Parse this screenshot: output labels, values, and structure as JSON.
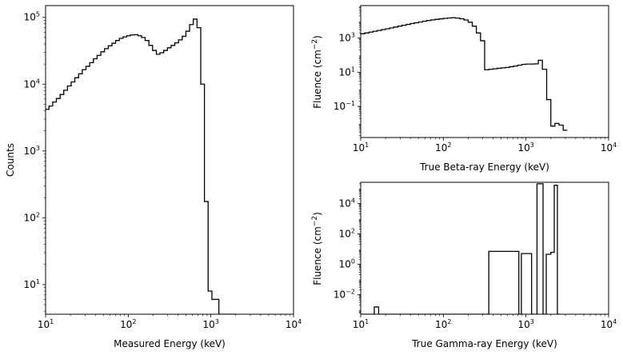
{
  "chart_data": [
    {
      "type": "step",
      "title": "",
      "xlabel": "Measured Energy (keV)",
      "ylabel": "Counts",
      "xscale": "log",
      "yscale": "log",
      "xlim": [
        10,
        10000
      ],
      "ylim": [
        3.6,
        150000
      ],
      "xticks": [
        {
          "value": 10,
          "base": "10",
          "exp": "1"
        },
        {
          "value": 100,
          "base": "10",
          "exp": "2"
        },
        {
          "value": 1000,
          "base": "10",
          "exp": "3"
        },
        {
          "value": 10000,
          "base": "10",
          "exp": "4"
        }
      ],
      "yticks": [
        {
          "value": 10,
          "base": "10",
          "exp": "1"
        },
        {
          "value": 100,
          "base": "10",
          "exp": "2"
        },
        {
          "value": 1000,
          "base": "10",
          "exp": "3"
        },
        {
          "value": 10000,
          "base": "10",
          "exp": "4"
        },
        {
          "value": 100000,
          "base": "10",
          "exp": "5"
        }
      ],
      "grid": false,
      "edges": [
        10,
        11,
        12.2,
        13.5,
        15,
        16.6,
        18.4,
        20.4,
        22.6,
        25.1,
        27.8,
        30.8,
        34.2,
        37.9,
        42,
        46.6,
        51.7,
        57.3,
        63.5,
        70.4,
        78.1,
        86.6,
        96,
        106,
        118,
        131,
        145,
        160,
        178,
        197,
        219,
        242,
        269,
        298,
        330,
        366,
        406,
        450,
        499,
        553,
        613,
        680,
        754,
        836,
        927,
        1030,
        1130,
        1250,
        1390,
        1540,
        1710,
        2000
      ],
      "values": [
        4200,
        4700,
        5400,
        6100,
        7000,
        8100,
        9400,
        10800,
        12500,
        14300,
        16500,
        18500,
        21000,
        24000,
        27000,
        30500,
        34000,
        37500,
        41000,
        45000,
        48500,
        51000,
        53000,
        54500,
        55000,
        53000,
        50000,
        45000,
        38000,
        32000,
        28000,
        29500,
        32000,
        35000,
        38000,
        41500,
        46000,
        52000,
        62000,
        78000,
        94000,
        70000,
        10000,
        175,
        8,
        6,
        6,
        3.6,
        3.6,
        3.6,
        3.6
      ]
    },
    {
      "type": "step",
      "title": "",
      "xlabel": "True Beta-ray Energy (keV)",
      "ylabel": "Fluence (cm",
      "ylabel_sup": "−2",
      "ylabel_end": ")",
      "xscale": "log",
      "yscale": "log",
      "xlim": [
        10,
        10000
      ],
      "ylim": [
        0.0015,
        80000
      ],
      "xticks": [
        {
          "value": 10,
          "base": "10",
          "exp": "1"
        },
        {
          "value": 100,
          "base": "10",
          "exp": "2"
        },
        {
          "value": 1000,
          "base": "10",
          "exp": "3"
        },
        {
          "value": 10000,
          "base": "10",
          "exp": "4"
        }
      ],
      "yticks": [
        {
          "value": 0.1,
          "base": "10",
          "exp": "−1"
        },
        {
          "value": 10,
          "base": "10",
          "exp": "1"
        },
        {
          "value": 1000,
          "base": "10",
          "exp": "3"
        }
      ],
      "grid": false,
      "edges": [
        10,
        11.2,
        12.6,
        14.1,
        15.8,
        17.8,
        20,
        22.4,
        25.1,
        28.2,
        31.6,
        35.5,
        39.8,
        44.7,
        50.1,
        56.2,
        63.1,
        70.8,
        79.4,
        89.1,
        100,
        112,
        126,
        141,
        158,
        178,
        200,
        224,
        251,
        282,
        316,
        355,
        398,
        447,
        501,
        562,
        631,
        708,
        794,
        891,
        1000,
        1120,
        1260,
        1410,
        1580,
        1780,
        2000,
        2240,
        2510,
        2820,
        3160
      ],
      "values": [
        1800,
        2000,
        2250,
        2500,
        2800,
        3150,
        3500,
        3950,
        4450,
        5000,
        5600,
        6300,
        7100,
        7900,
        8800,
        9800,
        10700,
        11600,
        12500,
        13400,
        14200,
        15000,
        15600,
        14800,
        13500,
        11500,
        8500,
        5000,
        2000,
        700,
        14,
        15,
        16,
        17,
        18,
        19,
        21,
        23,
        26,
        29,
        30,
        30,
        31,
        50,
        15,
        0.25,
        0.007,
        0.01,
        0.008,
        0.004
      ]
    },
    {
      "type": "step",
      "title": "",
      "xlabel": "True Gamma-ray Energy (keV)",
      "ylabel": "Fluence (cm",
      "ylabel_sup": "−2",
      "ylabel_end": ")",
      "xscale": "log",
      "yscale": "log",
      "xlim": [
        10,
        10000
      ],
      "ylim": [
        0.0005,
        250000
      ],
      "xticks": [
        {
          "value": 10,
          "base": "10",
          "exp": "1"
        },
        {
          "value": 100,
          "base": "10",
          "exp": "2"
        },
        {
          "value": 1000,
          "base": "10",
          "exp": "3"
        },
        {
          "value": 10000,
          "base": "10",
          "exp": "4"
        }
      ],
      "yticks": [
        {
          "value": 0.01,
          "base": "10",
          "exp": "−2"
        },
        {
          "value": 1,
          "base": "10",
          "exp": "0"
        },
        {
          "value": 100,
          "base": "10",
          "exp": "2"
        },
        {
          "value": 10000,
          "base": "10",
          "exp": "4"
        }
      ],
      "grid": false,
      "edges": [
        10,
        14.6,
        16.5,
        330,
        355,
        820,
        880,
        1170,
        1360,
        1610,
        1760,
        2000,
        2200,
        2400,
        2600
      ],
      "values": [
        0.0005,
        0.0015,
        0.0005,
        0.0005,
        7,
        0.0005,
        5,
        0.0005,
        200000,
        0.0005,
        4.5,
        6,
        160000,
        0.0005
      ]
    }
  ]
}
